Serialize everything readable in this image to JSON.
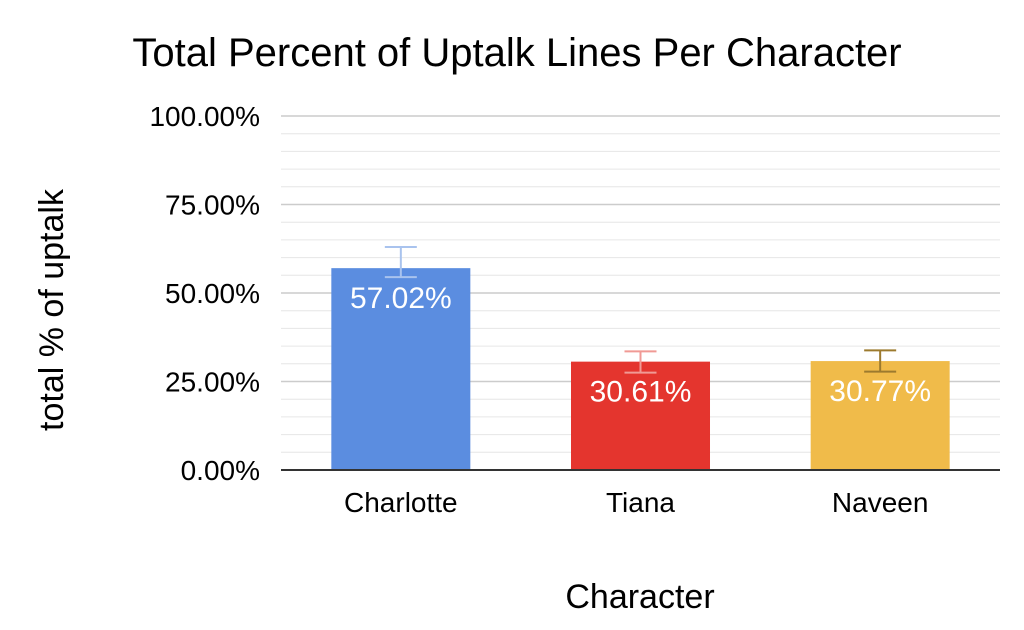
{
  "chart_data": {
    "type": "bar",
    "title": "Total Percent of Uptalk Lines Per Character",
    "xlabel": "Character",
    "ylabel": "total % of uptalk",
    "categories": [
      "Charlotte",
      "Tiana",
      "Naveen"
    ],
    "values": [
      57.02,
      30.61,
      30.77
    ],
    "data_labels": [
      "57.02%",
      "30.61%",
      "30.77%"
    ],
    "error_bars": [
      {
        "low": 54.5,
        "high": 63.0
      },
      {
        "low": 27.5,
        "high": 33.5
      },
      {
        "low": 27.8,
        "high": 33.8
      }
    ],
    "bar_colors": [
      "#5b8de0",
      "#e4352e",
      "#f0bb4a"
    ],
    "error_bar_colors": [
      "#a9c3ee",
      "#f09a95",
      "#9c7a2e"
    ],
    "ylim": [
      0,
      100
    ],
    "yticks": [
      0,
      25,
      50,
      75,
      100
    ],
    "ytick_labels": [
      "0.00%",
      "25.00%",
      "50.00%",
      "75.00%",
      "100.00%"
    ],
    "grid": true,
    "legend": "none"
  }
}
